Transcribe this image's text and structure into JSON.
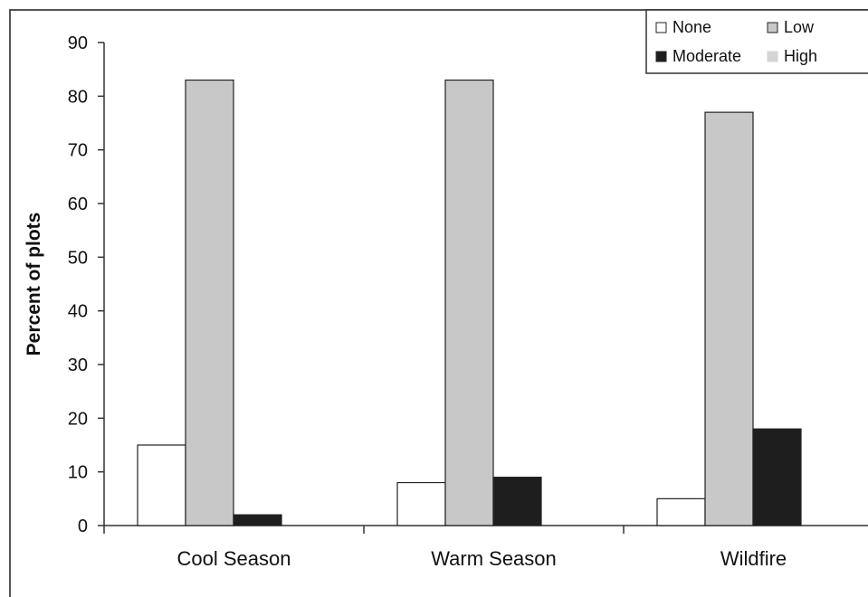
{
  "chart_data": {
    "type": "bar",
    "title": "",
    "xlabel": "",
    "ylabel": "Percent of plots",
    "ylim": [
      0,
      90
    ],
    "yticks": [
      0,
      10,
      20,
      30,
      40,
      50,
      60,
      70,
      80,
      90
    ],
    "categories": [
      "Cool Season",
      "Warm Season",
      "Wildfire"
    ],
    "series": [
      {
        "name": "None",
        "color": "#ffffff",
        "values": [
          15,
          8,
          5
        ]
      },
      {
        "name": "Low",
        "color": "#c8c8c8",
        "values": [
          83,
          83,
          77
        ]
      },
      {
        "name": "Moderate",
        "color": "#1e1e1e",
        "values": [
          2,
          9,
          18
        ]
      },
      {
        "name": "High",
        "color": "#d4d4d4",
        "values": [
          0,
          0,
          0
        ]
      }
    ],
    "legend_position": "top-right",
    "grid": false
  }
}
